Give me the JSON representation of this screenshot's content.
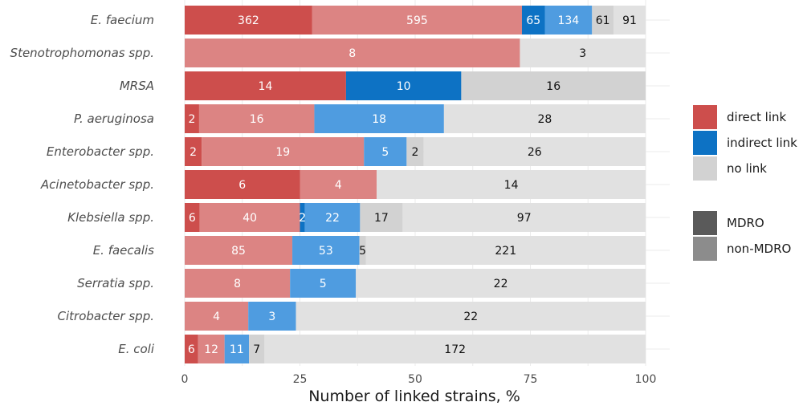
{
  "chart_data": {
    "type": "bar",
    "orientation": "horizontal",
    "stacked": "percent",
    "xlabel": "Number of linked strains, %",
    "ylabel": "",
    "xlim": [
      0,
      100
    ],
    "xticks": [
      0,
      25,
      50,
      75,
      100
    ],
    "grid": true,
    "legend_position": "right",
    "colors": {
      "direct_MDRO": "#cd4e4c",
      "direct_nonMDRO": "#dc8483",
      "indirect_MDRO": "#0d72c4",
      "indirect_nonMDRO": "#4f9ce0",
      "nolink_MDRO": "#d2d2d2",
      "nolink_nonMDRO": "#e1e1e1"
    },
    "segment_order": [
      "direct link, MDRO",
      "direct link, non-MDRO",
      "indirect link, MDRO",
      "indirect link, non-MDRO",
      "no link, MDRO",
      "no link, non-MDRO"
    ],
    "categories": [
      "E. faecium",
      "Stenotrophomonas spp.",
      "MRSA",
      "P. aeruginosa",
      "Enterobacter spp.",
      "Acinetobacter spp.",
      "Klebsiella spp.",
      "E. faecalis",
      "Serratia spp.",
      "Citrobacter spp.",
      "E. coli"
    ],
    "bars": [
      {
        "category": "E. faecium",
        "segments": [
          {
            "link": "direct",
            "mdro": true,
            "value": 362
          },
          {
            "link": "direct",
            "mdro": false,
            "value": 595
          },
          {
            "link": "indirect",
            "mdro": true,
            "value": 65
          },
          {
            "link": "indirect",
            "mdro": false,
            "value": 134
          },
          {
            "link": "none",
            "mdro": true,
            "value": 61
          },
          {
            "link": "none",
            "mdro": false,
            "value": 91
          }
        ]
      },
      {
        "category": "Stenotrophomonas spp.",
        "segments": [
          {
            "link": "direct",
            "mdro": false,
            "value": 8
          },
          {
            "link": "none",
            "mdro": false,
            "value": 3
          }
        ]
      },
      {
        "category": "MRSA",
        "segments": [
          {
            "link": "direct",
            "mdro": true,
            "value": 14
          },
          {
            "link": "indirect",
            "mdro": true,
            "value": 10
          },
          {
            "link": "none",
            "mdro": true,
            "value": 16
          }
        ]
      },
      {
        "category": "P. aeruginosa",
        "segments": [
          {
            "link": "direct",
            "mdro": true,
            "value": 2
          },
          {
            "link": "direct",
            "mdro": false,
            "value": 16
          },
          {
            "link": "indirect",
            "mdro": false,
            "value": 18
          },
          {
            "link": "none",
            "mdro": false,
            "value": 28
          }
        ]
      },
      {
        "category": "Enterobacter spp.",
        "segments": [
          {
            "link": "direct",
            "mdro": true,
            "value": 2
          },
          {
            "link": "direct",
            "mdro": false,
            "value": 19
          },
          {
            "link": "indirect",
            "mdro": false,
            "value": 5
          },
          {
            "link": "none",
            "mdro": true,
            "value": 2
          },
          {
            "link": "none",
            "mdro": false,
            "value": 26
          }
        ]
      },
      {
        "category": "Acinetobacter spp.",
        "segments": [
          {
            "link": "direct",
            "mdro": true,
            "value": 6
          },
          {
            "link": "direct",
            "mdro": false,
            "value": 4
          },
          {
            "link": "none",
            "mdro": false,
            "value": 14
          }
        ]
      },
      {
        "category": "Klebsiella spp.",
        "segments": [
          {
            "link": "direct",
            "mdro": true,
            "value": 6
          },
          {
            "link": "direct",
            "mdro": false,
            "value": 40
          },
          {
            "link": "indirect",
            "mdro": true,
            "value": 2
          },
          {
            "link": "indirect",
            "mdro": false,
            "value": 22
          },
          {
            "link": "none",
            "mdro": true,
            "value": 17
          },
          {
            "link": "none",
            "mdro": false,
            "value": 97
          }
        ]
      },
      {
        "category": "E. faecalis",
        "segments": [
          {
            "link": "direct",
            "mdro": false,
            "value": 85
          },
          {
            "link": "indirect",
            "mdro": false,
            "value": 53
          },
          {
            "link": "none",
            "mdro": true,
            "value": 5
          },
          {
            "link": "none",
            "mdro": false,
            "value": 221
          }
        ]
      },
      {
        "category": "Serratia spp.",
        "segments": [
          {
            "link": "direct",
            "mdro": false,
            "value": 8
          },
          {
            "link": "indirect",
            "mdro": false,
            "value": 5
          },
          {
            "link": "none",
            "mdro": false,
            "value": 22
          }
        ]
      },
      {
        "category": "Citrobacter spp.",
        "segments": [
          {
            "link": "direct",
            "mdro": false,
            "value": 4
          },
          {
            "link": "indirect",
            "mdro": false,
            "value": 3
          },
          {
            "link": "none",
            "mdro": false,
            "value": 22
          }
        ]
      },
      {
        "category": "E. coli",
        "segments": [
          {
            "link": "direct",
            "mdro": true,
            "value": 6
          },
          {
            "link": "direct",
            "mdro": false,
            "value": 12
          },
          {
            "link": "indirect",
            "mdro": false,
            "value": 11
          },
          {
            "link": "none",
            "mdro": true,
            "value": 7
          },
          {
            "link": "none",
            "mdro": false,
            "value": 172
          }
        ]
      }
    ]
  },
  "legend": {
    "link_items": [
      {
        "label": "direct link",
        "color": "#cd4e4c"
      },
      {
        "label": "indirect link",
        "color": "#0d72c4"
      },
      {
        "label": "no link",
        "color": "#d2d2d2"
      }
    ],
    "mdro_items": [
      {
        "label": "MDRO",
        "color": "#5a5a5a"
      },
      {
        "label": "non-MDRO",
        "color": "#8c8c8c"
      }
    ]
  }
}
